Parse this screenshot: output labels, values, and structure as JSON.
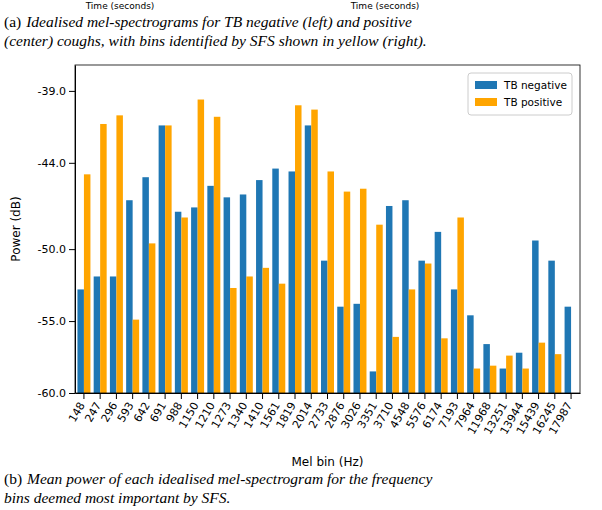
{
  "header": {
    "axis_labels": [
      "Time (seconds)",
      "Time (seconds)"
    ],
    "caption": {
      "label": "(a)",
      "lines": [
        "Idealised mel-spectrograms for TB negative (left) and positive",
        "(center) coughs, with bins identified by SFS shown in yellow (right)."
      ]
    }
  },
  "chart_data": {
    "type": "bar",
    "x_label": "Mel bin (Hz)",
    "y_label": "Power (dB)",
    "categories": [
      "148",
      "247",
      "296",
      "593",
      "642",
      "691",
      "988",
      "1150",
      "1210",
      "1273",
      "1340",
      "1410",
      "1561",
      "1819",
      "2014",
      "2733",
      "2876",
      "3026",
      "3351",
      "3710",
      "4548",
      "5576",
      "6174",
      "7193",
      "7964",
      "11968",
      "13251",
      "13944",
      "15439",
      "16245",
      "17987"
    ],
    "series": [
      {
        "name": "TB negative",
        "color": "#1f77b4",
        "values": [
          -52.8,
          -51.9,
          -51.9,
          -46.6,
          -45.0,
          -41.4,
          -47.4,
          -47.1,
          -45.6,
          -46.4,
          -46.2,
          -45.2,
          -44.4,
          -44.6,
          -41.4,
          -50.8,
          -54.0,
          -53.8,
          -58.5,
          -47.0,
          -46.6,
          -50.8,
          -48.8,
          -52.8,
          -54.6,
          -56.6,
          -58.3,
          -57.2,
          -49.4,
          -50.8,
          -54.0
        ]
      },
      {
        "name": "TB positive",
        "color": "#ffa500",
        "values": [
          -44.8,
          -41.3,
          -40.7,
          -54.9,
          -49.6,
          -41.4,
          -47.8,
          -39.6,
          -40.8,
          -52.7,
          -51.9,
          -51.3,
          -52.4,
          -40.0,
          -40.3,
          -44.6,
          -46.0,
          -45.8,
          -48.3,
          -56.1,
          -52.8,
          -51.0,
          -56.2,
          -47.8,
          -58.3,
          -58.1,
          -57.4,
          -58.3,
          -56.5,
          -57.3,
          null
        ]
      }
    ],
    "ylim": [
      -60,
      -37.2
    ],
    "yticks": [
      {
        "value": -60,
        "label": "-60.0"
      },
      {
        "value": -55,
        "label": "-55.0"
      },
      {
        "value": -50,
        "label": "-50.0"
      },
      {
        "value": -44,
        "label": "-44.0"
      },
      {
        "value": -39,
        "label": "-39.0"
      }
    ],
    "legend": "upper-right",
    "grid": false
  },
  "footer": {
    "caption": {
      "label": "(b)",
      "lines": [
        "Mean power of each idealised mel-spectrogram for the frequency",
        "bins deemed most important by SFS."
      ]
    }
  }
}
